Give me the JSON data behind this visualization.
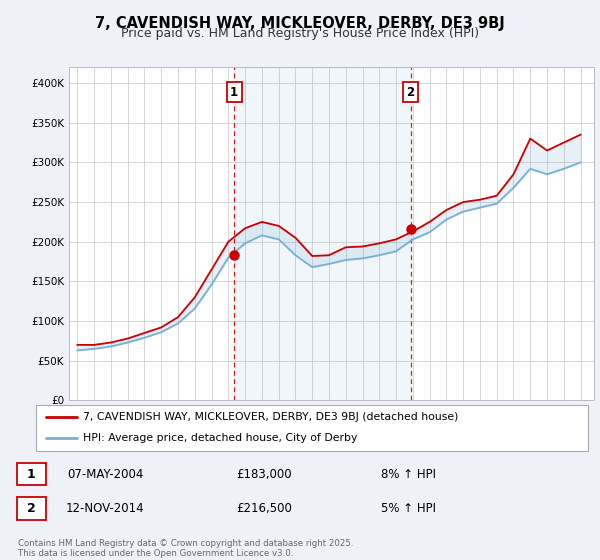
{
  "title": "7, CAVENDISH WAY, MICKLEOVER, DERBY, DE3 9BJ",
  "subtitle": "Price paid vs. HM Land Registry's House Price Index (HPI)",
  "bg_color": "#eef2f8",
  "plot_bg_color": "#ffffff",
  "grid_color": "#cccccc",
  "red_line_color": "#cc0000",
  "blue_line_color": "#7aafd4",
  "legend1": "7, CAVENDISH WAY, MICKLEOVER, DERBY, DE3 9BJ (detached house)",
  "legend2": "HPI: Average price, detached house, City of Derby",
  "annotation1_date": "07-MAY-2004",
  "annotation1_price": "£183,000",
  "annotation1_hpi": "8% ↑ HPI",
  "annotation2_date": "12-NOV-2014",
  "annotation2_price": "£216,500",
  "annotation2_hpi": "5% ↑ HPI",
  "footer": "Contains HM Land Registry data © Crown copyright and database right 2025.\nThis data is licensed under the Open Government Licence v3.0.",
  "marker1_x": 2004.35,
  "marker1_y": 183000,
  "marker2_x": 2014.87,
  "marker2_y": 216500,
  "years": [
    1995,
    1996,
    1997,
    1998,
    1999,
    2000,
    2001,
    2002,
    2003,
    2004,
    2005,
    2006,
    2007,
    2008,
    2009,
    2010,
    2011,
    2012,
    2013,
    2014,
    2015,
    2016,
    2017,
    2018,
    2019,
    2020,
    2021,
    2022,
    2023,
    2024,
    2025
  ],
  "red_values": [
    70000,
    70000,
    73000,
    78000,
    85000,
    92000,
    105000,
    130000,
    165000,
    200000,
    217000,
    225000,
    220000,
    205000,
    182000,
    183000,
    193000,
    194000,
    198000,
    203000,
    213000,
    225000,
    240000,
    250000,
    253000,
    258000,
    285000,
    330000,
    315000,
    325000,
    335000
  ],
  "blue_values": [
    63000,
    65000,
    68000,
    73000,
    79000,
    86000,
    97000,
    116000,
    146000,
    180000,
    198000,
    208000,
    203000,
    183000,
    168000,
    172000,
    177000,
    179000,
    183000,
    188000,
    203000,
    212000,
    228000,
    238000,
    243000,
    248000,
    268000,
    292000,
    285000,
    292000,
    300000
  ],
  "ylim_max": 420000,
  "xlim_min": 1994.5,
  "xlim_max": 2025.8,
  "yticks": [
    0,
    50000,
    100000,
    150000,
    200000,
    250000,
    300000,
    350000,
    400000
  ]
}
